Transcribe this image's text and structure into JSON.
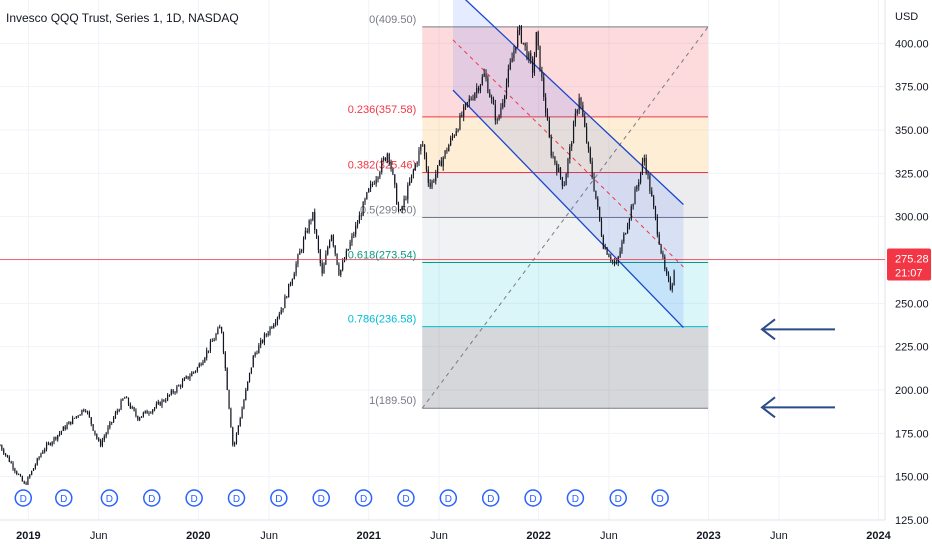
{
  "header": {
    "title": "Invesco QQQ Trust, Series 1, 1D, NASDAQ",
    "currency": "USD"
  },
  "price_label": {
    "price": "275.28",
    "countdown": "21:07",
    "color": "#f23645"
  },
  "chart_data": {
    "type": "line",
    "subtype": "candlestick",
    "x_ticks": [
      "2019",
      "Jun",
      "2020",
      "Jun",
      "2021",
      "Jun",
      "2022",
      "Jun",
      "2023",
      "Jun",
      "2024"
    ],
    "y_ticks": [
      "400.00",
      "375.00",
      "350.00",
      "325.00",
      "300.00",
      "275.00",
      "250.00",
      "225.00",
      "200.00",
      "175.00",
      "150.00",
      "125.00"
    ],
    "ylim": [
      125,
      425
    ],
    "xlim": [
      "2018-11-01",
      "2024-01-15"
    ],
    "last_price": 275.28,
    "series": [
      {
        "values": [
          [
            "2018-11-01",
            168
          ],
          [
            "2018-12-24",
            145
          ],
          [
            "2019-01-31",
            165
          ],
          [
            "2019-03-15",
            177
          ],
          [
            "2019-05-03",
            190
          ],
          [
            "2019-06-03",
            168
          ],
          [
            "2019-07-26",
            196
          ],
          [
            "2019-08-23",
            184
          ],
          [
            "2019-09-30",
            190
          ],
          [
            "2019-10-31",
            197
          ],
          [
            "2019-12-31",
            213
          ],
          [
            "2020-02-19",
            237
          ],
          [
            "2020-03-16",
            166
          ],
          [
            "2020-04-29",
            220
          ],
          [
            "2020-06-30",
            248
          ],
          [
            "2020-09-02",
            302
          ],
          [
            "2020-09-23",
            266
          ],
          [
            "2020-10-12",
            292
          ],
          [
            "2020-10-30",
            267
          ],
          [
            "2020-12-31",
            314
          ],
          [
            "2021-02-12",
            338
          ],
          [
            "2021-03-08",
            300
          ],
          [
            "2021-04-26",
            343
          ],
          [
            "2021-05-12",
            317
          ],
          [
            "2021-07-30",
            364
          ],
          [
            "2021-09-07",
            382
          ],
          [
            "2021-10-04",
            354
          ],
          [
            "2021-11-19",
            408
          ],
          [
            "2021-12-20",
            384
          ],
          [
            "2021-12-27",
            404
          ],
          [
            "2022-01-27",
            338
          ],
          [
            "2022-02-24",
            318
          ],
          [
            "2022-03-29",
            370
          ],
          [
            "2022-05-20",
            284
          ],
          [
            "2022-06-16",
            271
          ],
          [
            "2022-08-16",
            334
          ],
          [
            "2022-09-30",
            267
          ],
          [
            "2022-10-13",
            258
          ],
          [
            "2022-10-21",
            275
          ]
        ]
      }
    ],
    "dividend_marker_label": "D",
    "dividend_dates": [
      "2018-12-21",
      "2019-03-18",
      "2019-06-24",
      "2019-09-23",
      "2019-12-23",
      "2020-03-23",
      "2020-06-22",
      "2020-09-21",
      "2020-12-21",
      "2021-03-22",
      "2021-06-21",
      "2021-09-20",
      "2021-12-20",
      "2022-03-21",
      "2022-06-21",
      "2022-09-19"
    ],
    "fibonacci": {
      "start": "2021-04-26",
      "end": "2022-12-31",
      "levels": [
        {
          "label": "0(409.50)",
          "price": 409.5,
          "color": "#787b86",
          "fill": "rgba(242,54,69,0.18)"
        },
        {
          "label": "0.236(357.58)",
          "price": 357.58,
          "color": "#f23645",
          "fill": "rgba(255,152,0,0.16)"
        },
        {
          "label": "0.382(325.46)",
          "price": 325.46,
          "color": "#f23645",
          "fill": "rgba(120,123,134,0.14)"
        },
        {
          "label": "0.5(299.50)",
          "price": 299.5,
          "color": "#787b86",
          "fill": "rgba(120,123,134,0.10)"
        },
        {
          "label": "0.618(273.54)",
          "price": 273.54,
          "color": "#089981",
          "fill": "rgba(0,188,212,0.14)"
        },
        {
          "label": "0.786(236.58)",
          "price": 236.58,
          "color": "#00bcd4",
          "fill": "rgba(120,123,134,0.30)"
        },
        {
          "label": "1(189.50)",
          "price": 189.5,
          "color": "#787b86",
          "fill": null
        }
      ],
      "trend_line": [
        [
          "2021-04-26",
          189.5
        ],
        [
          "2022-12-31",
          409.5
        ]
      ]
    },
    "channel": {
      "upper": [
        [
          "2021-07-01",
          432
        ],
        [
          "2022-11-08",
          307
        ]
      ],
      "lower": [
        [
          "2021-07-01",
          373
        ],
        [
          "2022-11-08",
          236
        ]
      ],
      "mid": [
        [
          "2021-07-01",
          402
        ],
        [
          "2022-11-08",
          271
        ]
      ],
      "color": "#1848cc",
      "fill": "rgba(41,98,255,0.12)"
    },
    "annotations": [
      {
        "type": "arrow",
        "price": 235,
        "color": "#2a4a8a"
      },
      {
        "type": "arrow",
        "price": 190,
        "color": "#2a4a8a"
      }
    ]
  },
  "colors": {
    "up": "#089981",
    "down": "#f23645",
    "candle": "#131722",
    "grid": "#f0f3fa",
    "axis_text": "#131722"
  }
}
